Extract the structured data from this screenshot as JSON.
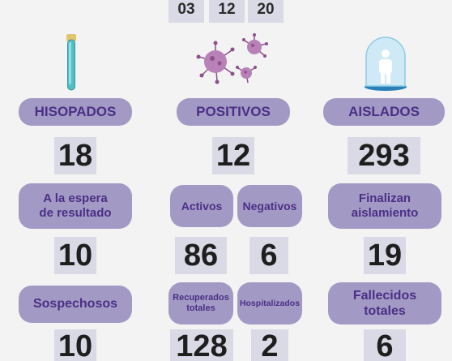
{
  "date": [
    "03",
    "12",
    "20"
  ],
  "icons": {
    "swab": "test-tube-icon",
    "virus": "virus-icon",
    "person": "isolated-person-icon"
  },
  "colors": {
    "pill_bg": "#a29ac4",
    "pill_text": "#4a2f86",
    "num_bg": "#dad9e6",
    "bg": "#f3f3f3"
  },
  "hisopados": {
    "label": "HISOPADOS",
    "value": "18"
  },
  "positivos": {
    "label": "POSITIVOS",
    "value": "12"
  },
  "aislados": {
    "label": "AISLADOS",
    "value": "293"
  },
  "espera": {
    "label_line1": "A la espera",
    "label_line2": "de resultado",
    "value": "10"
  },
  "activos": {
    "label": "Activos",
    "value": "86"
  },
  "negativos": {
    "label": "Negativos",
    "value": "6"
  },
  "finalizan": {
    "label_line1": "Finalizan",
    "label_line2": "aislamiento",
    "value": "19"
  },
  "sospechosos": {
    "label": "Sospechosos",
    "value": "10"
  },
  "recuperados": {
    "label_line1": "Recuperados",
    "label_line2": "totales",
    "value": "128"
  },
  "hospitalizados": {
    "label": "Hospitalizados",
    "value": "2"
  },
  "fallecidos": {
    "label_line1": "Fallecidos",
    "label_line2": "totales",
    "value": "6"
  }
}
